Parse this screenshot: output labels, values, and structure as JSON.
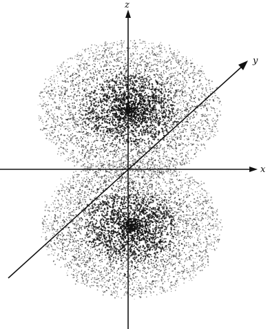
{
  "diagram": {
    "axes": {
      "x_label": "x",
      "y_label": "y",
      "z_label": "z"
    },
    "colors": {
      "background": "#ffffff",
      "ink": "#111111"
    },
    "lobes": [
      "upper-lobe",
      "lower-lobe"
    ]
  }
}
